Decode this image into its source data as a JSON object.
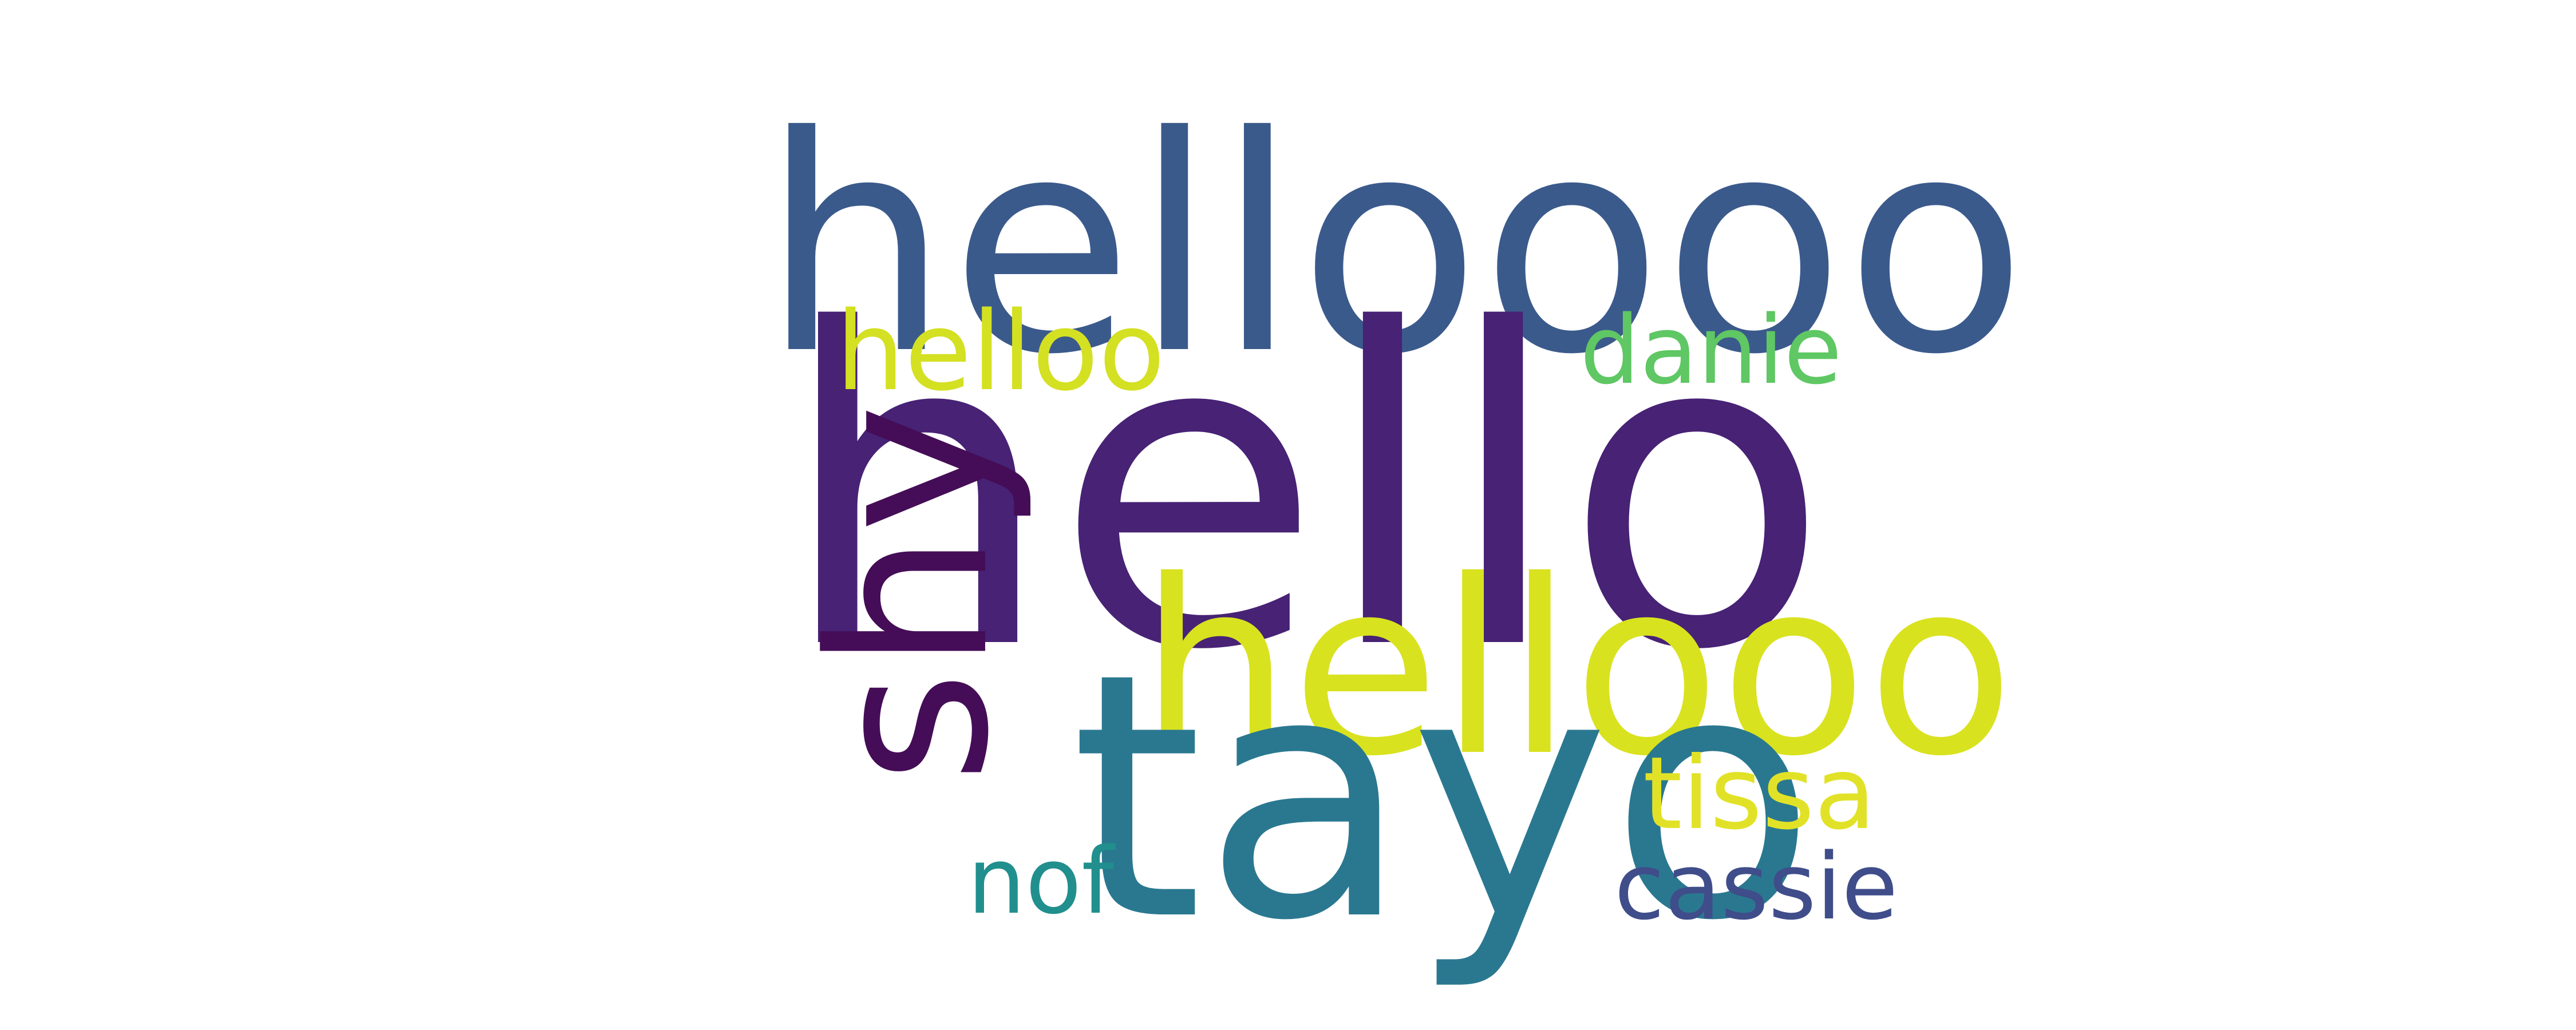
{
  "words": [
    {
      "text": "helloooo",
      "color": "#3b5a8c"
    },
    {
      "text": "helloo",
      "color": "#d4e022"
    },
    {
      "text": "hello",
      "color": "#472275"
    },
    {
      "text": "danie",
      "color": "#5fc763"
    },
    {
      "text": "hellooo",
      "color": "#d9e21f"
    },
    {
      "text": "shy",
      "color": "#450d57"
    },
    {
      "text": "tayo",
      "color": "#2a7890"
    },
    {
      "text": "tissa",
      "color": "#e1e227"
    },
    {
      "text": "nof",
      "color": "#218f8d"
    },
    {
      "text": "cassie",
      "color": "#3f4d8a"
    }
  ]
}
